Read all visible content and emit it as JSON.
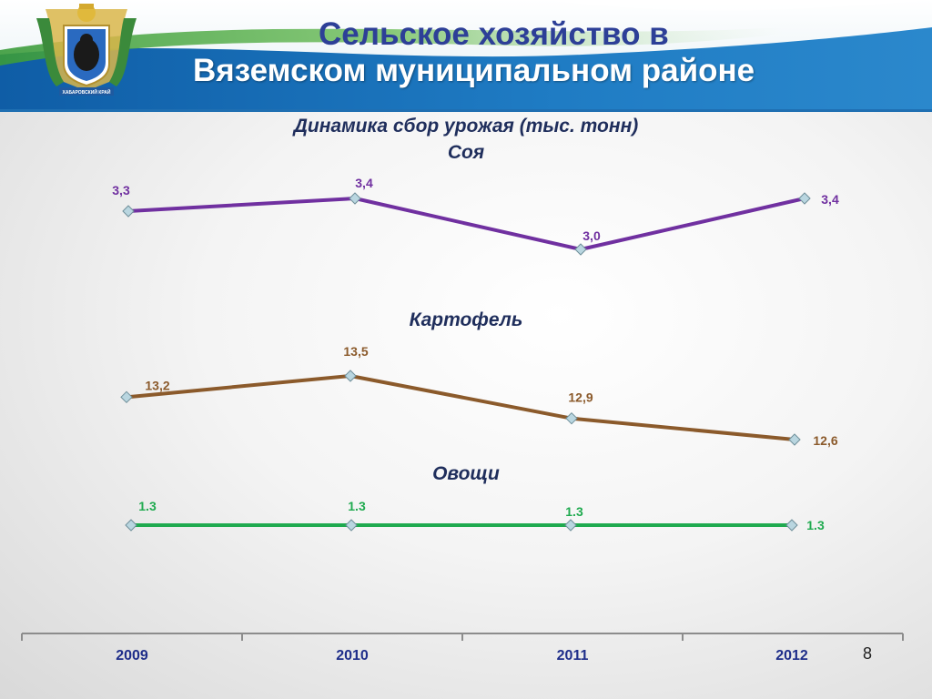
{
  "header": {
    "title_line1": "Сельское хозяйство в",
    "title_line2": "Вяземском муниципальном районе",
    "emblem_caption": "ХАБАРОВСКИЙ КРАЙ"
  },
  "chart_title": {
    "main": "Динамика сбор урожая (тыс. тонн)",
    "first_series": "Соя"
  },
  "page_number": "8",
  "colors": {
    "soy": "#7030a0",
    "potato": "#8b5a2b",
    "vegetables": "#1faa4f",
    "header_blue": "#1f6fb2",
    "title_blue": "#2d3f97",
    "year_label": "#1f2e8a"
  },
  "chart_data": {
    "type": "line",
    "categories": [
      "2009",
      "2010",
      "2011",
      "2012"
    ],
    "series": [
      {
        "name": "Соя",
        "values": [
          3.3,
          3.4,
          3.0,
          3.4
        ],
        "labels": [
          "3,3",
          "3,4",
          "3,0",
          "3,4"
        ]
      },
      {
        "name": "Картофель",
        "values": [
          13.2,
          13.5,
          12.9,
          12.6
        ],
        "labels": [
          "13,2",
          "13,5",
          "12,9",
          "12,6"
        ]
      },
      {
        "name": "Овощи",
        "values": [
          1.3,
          1.3,
          1.3,
          1.3
        ],
        "labels": [
          "1.3",
          "1.3",
          "1.3",
          "1.3"
        ]
      }
    ]
  }
}
